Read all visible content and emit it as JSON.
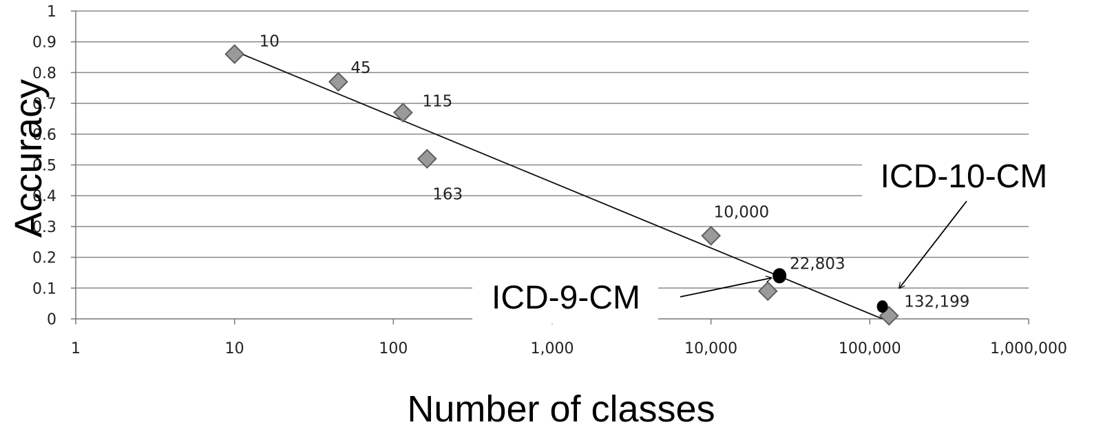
{
  "chart_data": {
    "type": "scatter",
    "xlabel": "Number of classes",
    "ylabel": "Accuracy",
    "xscale": "log",
    "xlim": [
      1,
      1000000
    ],
    "ylim": [
      0,
      1
    ],
    "grid": true,
    "x_tick_labels": [
      "1",
      "10",
      "100",
      "1,000",
      "10,000",
      "100,000",
      "1,000,000"
    ],
    "y_tick_labels": [
      "0",
      "0.1",
      "0.2",
      "0.3",
      "0.4",
      "0.5",
      "0.6",
      "0.7",
      "0.8",
      "0.9",
      "1"
    ],
    "series": [
      {
        "marker": "diamond",
        "points": [
          {
            "x": 10,
            "y": 0.86,
            "label": "10"
          },
          {
            "x": 45,
            "y": 0.77,
            "label": "45"
          },
          {
            "x": 115,
            "y": 0.67,
            "label": "115"
          },
          {
            "x": 163,
            "y": 0.52,
            "label": "163"
          },
          {
            "x": 10000,
            "y": 0.27,
            "label": "10,000"
          },
          {
            "x": 22803,
            "y": 0.09,
            "label": "22,803"
          },
          {
            "x": 132199,
            "y": 0.01,
            "label": "132,199"
          }
        ]
      },
      {
        "marker": "circle",
        "points": [
          {
            "x": 27000,
            "y": 0.14
          },
          {
            "x": 120000,
            "y": 0.04
          }
        ]
      }
    ],
    "trendline": {
      "x": [
        10,
        120000
      ],
      "y": [
        0.87,
        0.0
      ]
    },
    "annotations": [
      {
        "text": "ICD-9-CM",
        "arrow_target": {
          "x": 27000,
          "y": 0.14
        }
      },
      {
        "text": "ICD-10-CM",
        "arrow_target": {
          "x": 120000,
          "y": 0.04
        }
      }
    ]
  }
}
